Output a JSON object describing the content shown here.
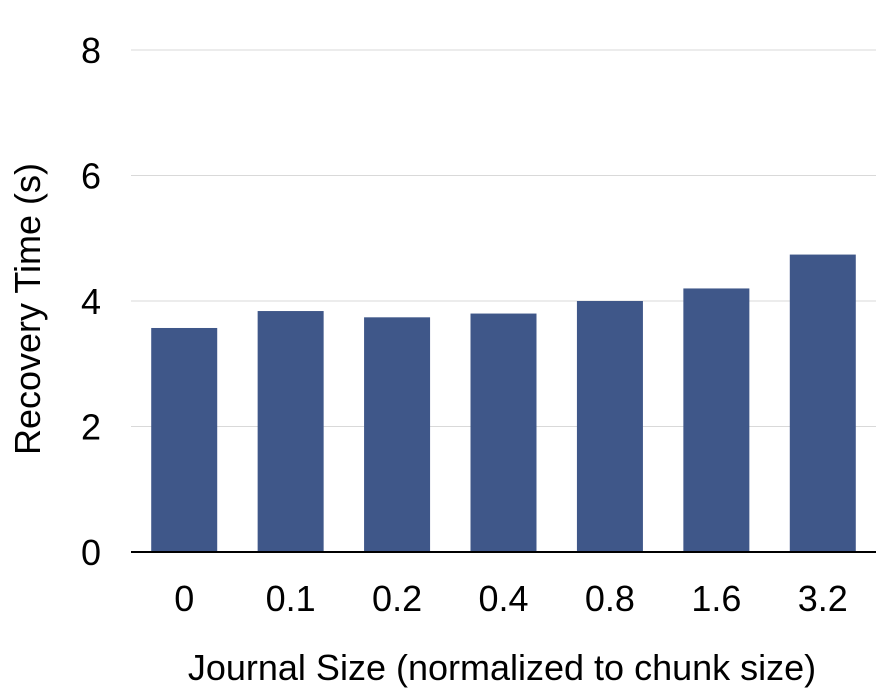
{
  "chart_data": {
    "type": "bar",
    "title": "",
    "xlabel": "Journal Size (normalized to chunk size)",
    "ylabel": "Recovery Time (s)",
    "categories": [
      "0",
      "0.1",
      "0.2",
      "0.4",
      "0.8",
      "1.6",
      "3.2"
    ],
    "values": [
      3.57,
      3.84,
      3.74,
      3.8,
      4.0,
      4.2,
      4.74
    ],
    "ylim": [
      0,
      8
    ],
    "yticks": [
      0,
      2,
      4,
      6,
      8
    ],
    "ytick_labels": [
      "0",
      "2",
      "4",
      "6",
      "8"
    ],
    "grid": true,
    "legend": "none",
    "colors": {
      "bar": "#3f5789",
      "grid": "#d9d9d9",
      "axis": "#000000"
    }
  }
}
